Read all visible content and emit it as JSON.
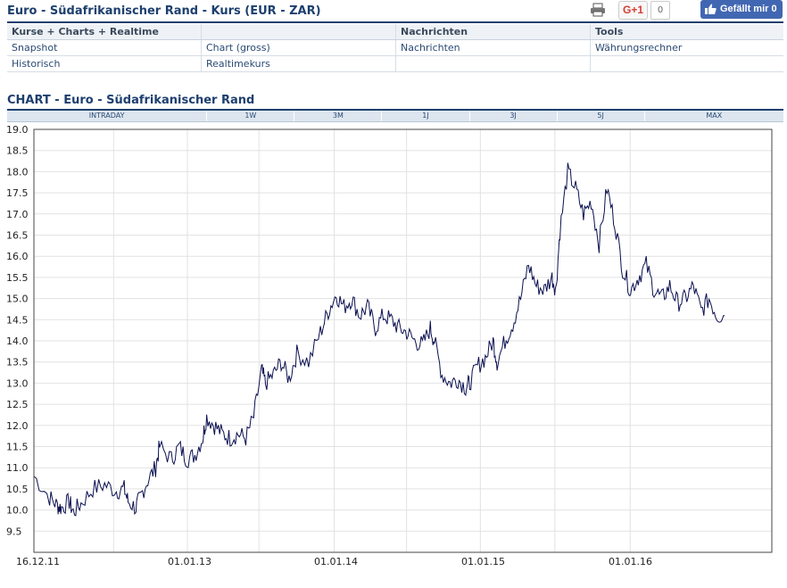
{
  "header": {
    "title": "Euro - Südafrikanischer Rand - Kurs (EUR - ZAR)",
    "gplus_label": "G+1",
    "gplus_count": "0",
    "fb_label": "Gefällt mir 0"
  },
  "nav": {
    "columns": [
      "Kurse + Charts + Realtime",
      "",
      "Nachrichten",
      "Tools"
    ],
    "rows": [
      [
        "Snapshot",
        "Chart (gross)",
        "Nachrichten",
        "Währungsrechner"
      ],
      [
        "Historisch",
        "Realtimekurs",
        "",
        ""
      ]
    ]
  },
  "chart_section": {
    "title": "CHART - Euro - Südafrikanischer Rand",
    "tabs": [
      "INTRADAY",
      "1W",
      "3M",
      "1J",
      "3J",
      "5J",
      "MAX"
    ]
  },
  "chart_data": {
    "type": "line",
    "ylim": [
      9.0,
      19.0
    ],
    "yticks": [
      "19.0",
      "18.5",
      "18.0",
      "17.5",
      "17.0",
      "16.5",
      "16.0",
      "15.5",
      "15.0",
      "14.5",
      "14.0",
      "13.5",
      "13.0",
      "12.5",
      "12.0",
      "11.5",
      "11.0",
      "10.5",
      "10.0",
      "9.5"
    ],
    "xticks": [
      "16.12.11",
      "01.01.13",
      "01.01.14",
      "01.01.15",
      "01.01.16"
    ],
    "grid": true,
    "series": [
      {
        "color": "#0a0f50",
        "points": [
          [
            0.0,
            10.8
          ],
          [
            0.02,
            10.3
          ],
          [
            0.03,
            10.1
          ],
          [
            0.035,
            10.05
          ],
          [
            0.045,
            10.2
          ],
          [
            0.05,
            9.95
          ],
          [
            0.06,
            10.15
          ],
          [
            0.075,
            10.5
          ],
          [
            0.09,
            10.6
          ],
          [
            0.105,
            10.45
          ],
          [
            0.115,
            10.5
          ],
          [
            0.12,
            10.2
          ],
          [
            0.13,
            10.05
          ],
          [
            0.135,
            10.3
          ],
          [
            0.145,
            10.7
          ],
          [
            0.155,
            11.0
          ],
          [
            0.16,
            11.5
          ],
          [
            0.175,
            11.2
          ],
          [
            0.185,
            11.5
          ],
          [
            0.195,
            11.2
          ],
          [
            0.205,
            11.3
          ],
          [
            0.215,
            11.7
          ],
          [
            0.22,
            12.2
          ],
          [
            0.23,
            12.0
          ],
          [
            0.24,
            11.8
          ],
          [
            0.25,
            11.7
          ],
          [
            0.26,
            11.8
          ],
          [
            0.27,
            11.7
          ],
          [
            0.28,
            12.2
          ],
          [
            0.29,
            13.3
          ],
          [
            0.295,
            13.0
          ],
          [
            0.305,
            13.2
          ],
          [
            0.315,
            13.5
          ],
          [
            0.325,
            13.1
          ],
          [
            0.335,
            13.7
          ],
          [
            0.35,
            13.5
          ],
          [
            0.365,
            14.2
          ],
          [
            0.375,
            14.7
          ],
          [
            0.385,
            15.1
          ],
          [
            0.395,
            14.8
          ],
          [
            0.405,
            15.0
          ],
          [
            0.415,
            14.6
          ],
          [
            0.425,
            14.8
          ],
          [
            0.435,
            14.3
          ],
          [
            0.445,
            14.6
          ],
          [
            0.455,
            14.5
          ],
          [
            0.465,
            14.3
          ],
          [
            0.475,
            14.2
          ],
          [
            0.485,
            14.0
          ],
          [
            0.495,
            13.9
          ],
          [
            0.505,
            14.3
          ],
          [
            0.51,
            14.0
          ],
          [
            0.52,
            13.2
          ],
          [
            0.53,
            13.0
          ],
          [
            0.54,
            13.1
          ],
          [
            0.55,
            12.9
          ],
          [
            0.555,
            13.0
          ],
          [
            0.565,
            13.4
          ],
          [
            0.575,
            13.6
          ],
          [
            0.585,
            14.0
          ],
          [
            0.59,
            13.5
          ],
          [
            0.6,
            14.0
          ],
          [
            0.61,
            14.4
          ],
          [
            0.62,
            15.0
          ],
          [
            0.63,
            15.8
          ],
          [
            0.64,
            15.3
          ],
          [
            0.65,
            15.2
          ],
          [
            0.66,
            15.5
          ],
          [
            0.665,
            15.2
          ],
          [
            0.67,
            16.6
          ],
          [
            0.68,
            18.0
          ],
          [
            0.69,
            17.6
          ],
          [
            0.7,
            17.0
          ],
          [
            0.71,
            17.3
          ],
          [
            0.72,
            16.3
          ],
          [
            0.73,
            17.6
          ],
          [
            0.74,
            16.8
          ],
          [
            0.75,
            15.7
          ],
          [
            0.76,
            15.2
          ],
          [
            0.77,
            15.5
          ],
          [
            0.78,
            15.8
          ],
          [
            0.79,
            15.2
          ],
          [
            0.8,
            15.0
          ],
          [
            0.81,
            15.3
          ],
          [
            0.82,
            14.9
          ],
          [
            0.83,
            15.0
          ],
          [
            0.84,
            15.3
          ],
          [
            0.85,
            14.7
          ],
          [
            0.86,
            15.0
          ],
          [
            0.87,
            14.6
          ],
          [
            0.88,
            14.6
          ]
        ]
      }
    ]
  }
}
